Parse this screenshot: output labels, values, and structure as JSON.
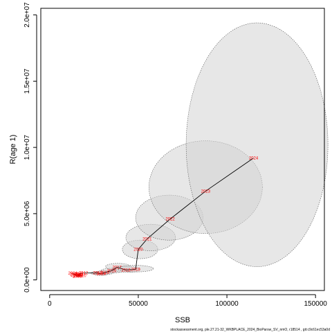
{
  "chart_data": {
    "type": "scatter",
    "title": "",
    "xlabel": "SSB",
    "ylabel": "R(age 1)",
    "xlim": [
      -5000,
      155000
    ],
    "ylim": [
      -800000,
      20500000
    ],
    "xticks": [
      0,
      50000,
      100000,
      150000
    ],
    "xtick_labels": [
      "0",
      "50000",
      "100000",
      "150000"
    ],
    "yticks": [
      0,
      5000000,
      10000000,
      15000000,
      20000000
    ],
    "ytick_labels": [
      "0.0e+00",
      "5.0e+06",
      "1.0e+07",
      "1.5e+07",
      "2.0e+07"
    ],
    "grid": false,
    "trajectory_color": "#000000",
    "label_color": "#ff0000",
    "ellipse_fill": "#d3d3d3",
    "ellipse_stroke": "#555555",
    "points": [
      {
        "year": "2004",
        "ssb": 13000,
        "rec": 500000
      },
      {
        "year": "2005",
        "ssb": 14500,
        "rec": 350000
      },
      {
        "year": "2006",
        "ssb": 16000,
        "rec": 300000
      },
      {
        "year": "2007",
        "ssb": 17500,
        "rec": 400000
      },
      {
        "year": "2008",
        "ssb": 14000,
        "rec": 420000
      },
      {
        "year": "2009",
        "ssb": 15500,
        "rec": 280000
      },
      {
        "year": "2010",
        "ssb": 18000,
        "rec": 330000
      },
      {
        "year": "2011",
        "ssb": 16500,
        "rec": 450000
      },
      {
        "year": "2012",
        "ssb": 19000,
        "rec": 520000
      },
      {
        "year": "2013",
        "ssb": 27000,
        "rec": 520000
      },
      {
        "year": "2014",
        "ssb": 29000,
        "rec": 450000
      },
      {
        "year": "2015",
        "ssb": 31000,
        "rec": 550000
      },
      {
        "year": "2016",
        "ssb": 35000,
        "rec": 700000
      },
      {
        "year": "2017",
        "ssb": 38000,
        "rec": 950000
      },
      {
        "year": "2018",
        "ssb": 43000,
        "rec": 750000
      },
      {
        "year": "2019",
        "ssb": 48500,
        "rec": 800000
      },
      {
        "year": "2020",
        "ssb": 50000,
        "rec": 2300000
      },
      {
        "year": "2021",
        "ssb": 55000,
        "rec": 3100000
      },
      {
        "year": "2022",
        "ssb": 68000,
        "rec": 4600000
      },
      {
        "year": "2023",
        "ssb": 88000,
        "rec": 6700000
      },
      {
        "year": "2024",
        "ssb": 115000,
        "rec": 9200000
      }
    ],
    "confidence_ellipses": [
      {
        "year": "2013",
        "cx": 27000,
        "cy": 520000,
        "rx": 4000,
        "ry": 120000
      },
      {
        "year": "2014",
        "cx": 29000,
        "cy": 450000,
        "rx": 4000,
        "ry": 110000
      },
      {
        "year": "2015",
        "cx": 31000,
        "cy": 550000,
        "rx": 5000,
        "ry": 150000
      },
      {
        "year": "2016",
        "cx": 35000,
        "cy": 700000,
        "rx": 6000,
        "ry": 180000
      },
      {
        "year": "2017",
        "cx": 38500,
        "cy": 1000000,
        "rx": 7000,
        "ry": 250000
      },
      {
        "year": "2018",
        "cx": 43000,
        "cy": 800000,
        "rx": 8000,
        "ry": 230000
      },
      {
        "year": "2019",
        "cx": 48500,
        "cy": 850000,
        "rx": 10000,
        "ry": 250000
      },
      {
        "year": "2020",
        "cx": 51000,
        "cy": 2300000,
        "rx": 10000,
        "ry": 700000
      },
      {
        "year": "2021",
        "cx": 57000,
        "cy": 3200000,
        "rx": 14000,
        "ry": 1000000
      },
      {
        "year": "2022",
        "cx": 67500,
        "cy": 4700000,
        "rx": 19000,
        "ry": 1700000
      },
      {
        "year": "2023",
        "cx": 88000,
        "cy": 7000000,
        "rx": 32000,
        "ry": 3500000
      },
      {
        "year": "2024",
        "cx": 117000,
        "cy": 10200000,
        "rx": 40000,
        "ry": 9200000
      }
    ]
  },
  "footnote": "stockassessment.org, ple.27.21-32_WKBPLACE_2024_BioParsw_SV_nmO, r18514 , git:c9c61ec53a0d"
}
